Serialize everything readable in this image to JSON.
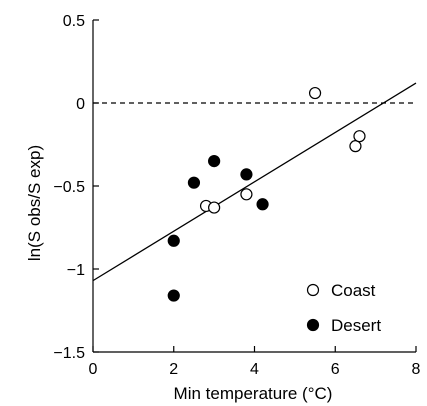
{
  "chart_data": {
    "type": "scatter",
    "title": "",
    "xlabel": "Min temperature (°C)",
    "ylabel": "ln(S obs/S exp)",
    "xlim": [
      0,
      8
    ],
    "ylim": [
      -1.5,
      0.5
    ],
    "x_ticks": [
      0,
      2,
      4,
      6,
      8
    ],
    "x_tick_labels": [
      "0",
      "2",
      "4",
      "6",
      "8"
    ],
    "y_ticks": [
      0.5,
      0,
      -0.5,
      -1,
      -1.5
    ],
    "y_tick_labels": [
      "0.5",
      "0",
      "−0.5",
      "−1",
      "−1.5"
    ],
    "grid": false,
    "legend_position": "bottom-right",
    "reference_line": {
      "y": 0,
      "style": "dashed"
    },
    "regression_line": {
      "x": [
        0,
        8
      ],
      "y": [
        -1.07,
        0.12
      ]
    },
    "series": [
      {
        "name": "Coast",
        "marker": "open-circle",
        "points": [
          {
            "x": 2.8,
            "y": -0.62
          },
          {
            "x": 3.0,
            "y": -0.63
          },
          {
            "x": 3.8,
            "y": -0.55
          },
          {
            "x": 5.5,
            "y": 0.06
          },
          {
            "x": 6.5,
            "y": -0.26
          },
          {
            "x": 6.6,
            "y": -0.2
          }
        ]
      },
      {
        "name": "Desert",
        "marker": "filled-circle",
        "points": [
          {
            "x": 2.0,
            "y": -0.83
          },
          {
            "x": 2.0,
            "y": -1.16
          },
          {
            "x": 2.5,
            "y": -0.48
          },
          {
            "x": 3.0,
            "y": -0.35
          },
          {
            "x": 3.8,
            "y": -0.43
          },
          {
            "x": 4.2,
            "y": -0.61
          }
        ]
      }
    ]
  }
}
